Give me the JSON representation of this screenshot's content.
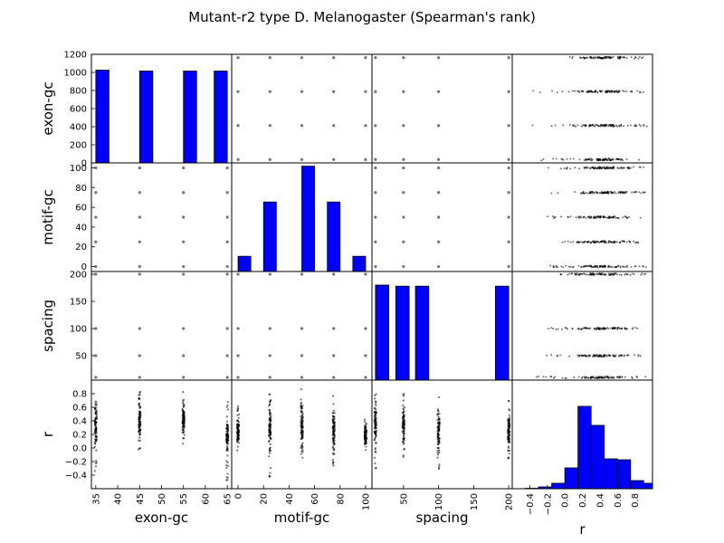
{
  "figure": {
    "title": "Mutant-r2 type D. Melanogaster (Spearman's rank)",
    "background": "#ffffff",
    "bar_color": "#0000ff",
    "point_color": "#000000"
  },
  "chart_data": {
    "type": "scatter-matrix",
    "title": "Mutant-r2 type D. Melanogaster (Spearman's rank)",
    "variables": [
      {
        "name": "exon-gc",
        "values": [
          35,
          45,
          55,
          65
        ],
        "range": [
          34,
          66
        ],
        "ticks": [
          35,
          40,
          45,
          50,
          55,
          60,
          65
        ]
      },
      {
        "name": "motif-gc",
        "values": [
          0,
          25,
          50,
          75,
          100
        ],
        "range": [
          -5,
          105
        ],
        "ticks": [
          0,
          20,
          40,
          60,
          80,
          100
        ]
      },
      {
        "name": "spacing",
        "values": [
          10,
          50,
          100,
          200
        ],
        "range": [
          5,
          205
        ],
        "ticks": [
          50,
          100,
          150,
          200
        ]
      },
      {
        "name": "r",
        "range": [
          -0.6,
          1.0
        ],
        "ticks": [
          -0.4,
          -0.2,
          0.0,
          0.2,
          0.4,
          0.6,
          0.8
        ]
      }
    ],
    "diagonal_histograms": [
      {
        "variable": "exon-gc",
        "ylim": [
          0,
          1200
        ],
        "yticks": [
          0,
          200,
          400,
          600,
          800,
          1000,
          1200
        ],
        "bins": [
          {
            "x0": 35,
            "x1": 38,
            "count": 1025
          },
          {
            "x0": 45,
            "x1": 48,
            "count": 1015
          },
          {
            "x0": 55,
            "x1": 58,
            "count": 1015
          },
          {
            "x0": 62,
            "x1": 65,
            "count": 1015
          }
        ]
      },
      {
        "variable": "motif-gc",
        "ylim": [
          0,
          100
        ],
        "yticks": [
          0,
          20,
          40,
          60,
          80,
          100
        ],
        "bins": [
          {
            "x0": 0,
            "x1": 10,
            "count": 14
          },
          {
            "x0": 20,
            "x1": 30,
            "count": 64
          },
          {
            "x0": 50,
            "x1": 60,
            "count": 97
          },
          {
            "x0": 70,
            "x1": 80,
            "count": 64
          },
          {
            "x0": 90,
            "x1": 100,
            "count": 14
          }
        ]
      },
      {
        "variable": "spacing",
        "ylim": [
          0,
          200
        ],
        "yticks": [
          50,
          100,
          150,
          200
        ],
        "bins": [
          {
            "x0": 10,
            "x1": 29,
            "count": 175
          },
          {
            "x0": 39,
            "x1": 58,
            "count": 173
          },
          {
            "x0": 67,
            "x1": 86,
            "count": 173
          },
          {
            "x0": 181,
            "x1": 200,
            "count": 173
          }
        ]
      },
      {
        "variable": "r",
        "ylim": [
          0,
          1200
        ],
        "bins": [
          {
            "x0": -0.45,
            "x1": -0.3,
            "count": 5
          },
          {
            "x0": -0.3,
            "x1": -0.15,
            "count": 20
          },
          {
            "x0": -0.15,
            "x1": 0.0,
            "count": 60
          },
          {
            "x0": 0.0,
            "x1": 0.15,
            "count": 230
          },
          {
            "x0": 0.15,
            "x1": 0.3,
            "count": 910
          },
          {
            "x0": 0.3,
            "x1": 0.45,
            "count": 700
          },
          {
            "x0": 0.45,
            "x1": 0.6,
            "count": 330
          },
          {
            "x0": 0.6,
            "x1": 0.75,
            "count": 320
          },
          {
            "x0": 0.75,
            "x1": 0.9,
            "count": 90
          },
          {
            "x0": 0.9,
            "x1": 1.0,
            "count": 60
          }
        ]
      }
    ],
    "r_by_level": {
      "exon-gc": [
        {
          "level": 35,
          "min": -0.38,
          "max": 0.88,
          "lo": -0.05,
          "hi": 0.75
        },
        {
          "level": 45,
          "min": -0.04,
          "max": 0.86,
          "lo": 0.05,
          "hi": 0.75
        },
        {
          "level": 55,
          "min": 0.05,
          "max": 0.84,
          "lo": 0.12,
          "hi": 0.72
        },
        {
          "level": 65,
          "min": -0.48,
          "max": 0.7,
          "lo": -0.1,
          "hi": 0.45
        }
      ],
      "motif-gc": [
        {
          "level": 0,
          "min": -0.1,
          "max": 0.62,
          "lo": 0.0,
          "hi": 0.5
        },
        {
          "level": 25,
          "min": -0.45,
          "max": 0.88,
          "lo": -0.2,
          "hi": 0.8
        },
        {
          "level": 50,
          "min": -0.2,
          "max": 0.88,
          "lo": -0.1,
          "hi": 0.82
        },
        {
          "level": 75,
          "min": -0.32,
          "max": 0.86,
          "lo": -0.2,
          "hi": 0.75
        },
        {
          "level": 100,
          "min": -0.05,
          "max": 0.47,
          "lo": 0.0,
          "hi": 0.4
        }
      ],
      "spacing": [
        {
          "level": 10,
          "min": -0.3,
          "max": 0.88,
          "lo": -0.1,
          "hi": 0.8
        },
        {
          "level": 50,
          "min": -0.15,
          "max": 0.85,
          "lo": -0.05,
          "hi": 0.7
        },
        {
          "level": 100,
          "min": -0.35,
          "max": 0.76,
          "lo": -0.2,
          "hi": 0.65
        },
        {
          "level": 200,
          "min": -0.2,
          "max": 0.7,
          "lo": -0.1,
          "hi": 0.6
        }
      ]
    },
    "r_by_level_yaxis": {
      "exon-gc": [
        {
          "level": 35,
          "min": -0.32,
          "max": 0.88
        },
        {
          "level": 45,
          "min": -0.38,
          "max": 0.95
        },
        {
          "level": 55,
          "min": -0.38,
          "max": 0.9
        },
        {
          "level": 65,
          "min": 0.05,
          "max": 0.96
        }
      ],
      "motif-gc": [
        {
          "level": 0,
          "min": -0.3,
          "max": 0.95
        },
        {
          "level": 25,
          "min": -0.15,
          "max": 0.92
        },
        {
          "level": 50,
          "min": -0.2,
          "max": 0.88
        },
        {
          "level": 75,
          "min": -0.18,
          "max": 0.92
        },
        {
          "level": 100,
          "min": -0.28,
          "max": 0.9
        }
      ],
      "spacing": [
        {
          "level": 10,
          "min": -0.38,
          "max": 0.95
        },
        {
          "level": 50,
          "min": -0.32,
          "max": 0.92
        },
        {
          "level": 100,
          "min": -0.2,
          "max": 0.88
        },
        {
          "level": 200,
          "min": -0.05,
          "max": 0.95
        }
      ]
    },
    "grid": false,
    "legend": "none"
  }
}
